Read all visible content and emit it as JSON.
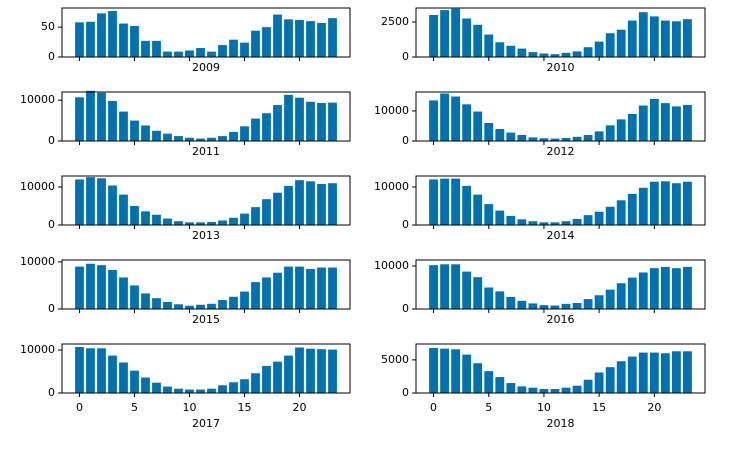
{
  "chart_data": [
    {
      "type": "bar",
      "xlabel": "2009",
      "color": "#0072b2",
      "xlim": [
        -1.59,
        24.59
      ],
      "ylim": [
        0,
        82
      ],
      "yticks": [
        0,
        50
      ],
      "xticks": [
        0,
        5,
        10,
        15,
        20
      ],
      "xtick_labels": false,
      "x": [
        0,
        1,
        2,
        3,
        4,
        5,
        6,
        7,
        8,
        9,
        10,
        11,
        12,
        13,
        14,
        15,
        16,
        17,
        18,
        19,
        20,
        21,
        22,
        23
      ],
      "values": [
        58,
        59,
        73,
        77,
        56,
        52,
        27,
        27,
        9,
        9,
        11,
        15,
        9,
        20,
        29,
        24,
        44,
        50,
        71,
        63,
        62,
        60,
        57,
        65
      ]
    },
    {
      "type": "bar",
      "xlabel": "2010",
      "color": "#0072b2",
      "xlim": [
        -1.59,
        24.59
      ],
      "ylim": [
        0,
        3500
      ],
      "yticks": [
        0,
        2500
      ],
      "xticks": [
        0,
        5,
        10,
        15,
        20
      ],
      "xtick_labels": false,
      "x": [
        0,
        1,
        2,
        3,
        4,
        5,
        6,
        7,
        8,
        9,
        10,
        11,
        12,
        13,
        14,
        15,
        16,
        17,
        18,
        19,
        20,
        21,
        22,
        23
      ],
      "values": [
        3000,
        3350,
        3450,
        2750,
        2300,
        1600,
        1050,
        800,
        600,
        350,
        250,
        200,
        300,
        400,
        700,
        1100,
        1700,
        1950,
        2600,
        3200,
        2900,
        2600,
        2550,
        2700
      ]
    },
    {
      "type": "bar",
      "xlabel": "2011",
      "color": "#0072b2",
      "xlim": [
        -1.59,
        24.59
      ],
      "ylim": [
        0,
        12000
      ],
      "yticks": [
        0,
        10000
      ],
      "xticks": [
        0,
        5,
        10,
        15,
        20
      ],
      "xtick_labels": false,
      "x": [
        0,
        1,
        2,
        3,
        4,
        5,
        6,
        7,
        8,
        9,
        10,
        11,
        12,
        13,
        14,
        15,
        16,
        17,
        18,
        19,
        20,
        21,
        22,
        23
      ],
      "values": [
        10700,
        12300,
        11800,
        9800,
        7200,
        5000,
        3800,
        2500,
        1800,
        1200,
        800,
        600,
        800,
        1200,
        2200,
        3600,
        5500,
        6800,
        8800,
        11300,
        10600,
        9600,
        9300,
        9400
      ]
    },
    {
      "type": "bar",
      "xlabel": "2012",
      "color": "#0072b2",
      "xlim": [
        -1.59,
        24.59
      ],
      "ylim": [
        0,
        16300
      ],
      "yticks": [
        0,
        10000
      ],
      "xticks": [
        0,
        5,
        10,
        15,
        20
      ],
      "xtick_labels": false,
      "x": [
        0,
        1,
        2,
        3,
        4,
        5,
        6,
        7,
        8,
        9,
        10,
        11,
        12,
        13,
        14,
        15,
        16,
        17,
        18,
        19,
        20,
        21,
        22,
        23
      ],
      "values": [
        13500,
        15800,
        14800,
        12200,
        9800,
        6000,
        4000,
        2800,
        2000,
        1200,
        900,
        800,
        1000,
        1400,
        2000,
        3200,
        5200,
        7200,
        9000,
        11800,
        14000,
        12600,
        11500,
        12000
      ]
    },
    {
      "type": "bar",
      "xlabel": "2013",
      "color": "#0072b2",
      "xlim": [
        -1.59,
        24.59
      ],
      "ylim": [
        0,
        12900
      ],
      "yticks": [
        0,
        10000
      ],
      "xticks": [
        0,
        5,
        10,
        15,
        20
      ],
      "xtick_labels": false,
      "x": [
        0,
        1,
        2,
        3,
        4,
        5,
        6,
        7,
        8,
        9,
        10,
        11,
        12,
        13,
        14,
        15,
        16,
        17,
        18,
        19,
        20,
        21,
        22,
        23
      ],
      "values": [
        12000,
        12600,
        12300,
        10400,
        8000,
        5000,
        3600,
        2700,
        1700,
        1000,
        700,
        700,
        800,
        1200,
        1900,
        3000,
        4700,
        6800,
        8500,
        10300,
        11800,
        11500,
        10800,
        11000
      ]
    },
    {
      "type": "bar",
      "xlabel": "2014",
      "color": "#0072b2",
      "xlim": [
        -1.59,
        24.59
      ],
      "ylim": [
        0,
        12900
      ],
      "yticks": [
        0,
        10000
      ],
      "xticks": [
        0,
        5,
        10,
        15,
        20
      ],
      "xtick_labels": false,
      "x": [
        0,
        1,
        2,
        3,
        4,
        5,
        6,
        7,
        8,
        9,
        10,
        11,
        12,
        13,
        14,
        15,
        16,
        17,
        18,
        19,
        20,
        21,
        22,
        23
      ],
      "values": [
        12000,
        12200,
        12200,
        10300,
        8000,
        5500,
        3800,
        2400,
        1500,
        1000,
        700,
        700,
        1000,
        1600,
        2600,
        3500,
        4800,
        6500,
        8200,
        9800,
        11400,
        11500,
        11000,
        11400
      ]
    },
    {
      "type": "bar",
      "xlabel": "2015",
      "color": "#0072b2",
      "xlim": [
        -1.59,
        24.59
      ],
      "ylim": [
        0,
        10400
      ],
      "yticks": [
        0,
        10000
      ],
      "xticks": [
        0,
        5,
        10,
        15,
        20
      ],
      "xtick_labels": false,
      "x": [
        0,
        1,
        2,
        3,
        4,
        5,
        6,
        7,
        8,
        9,
        10,
        11,
        12,
        13,
        14,
        15,
        16,
        17,
        18,
        19,
        20,
        21,
        22,
        23
      ],
      "values": [
        9000,
        9600,
        9300,
        8300,
        6700,
        5000,
        3300,
        2300,
        1500,
        1000,
        700,
        900,
        1100,
        1900,
        2600,
        3700,
        5700,
        6700,
        7700,
        9000,
        9000,
        8500,
        8800,
        8800
      ]
    },
    {
      "type": "bar",
      "xlabel": "2016",
      "color": "#0072b2",
      "xlim": [
        -1.59,
        24.59
      ],
      "ylim": [
        0,
        11400
      ],
      "yticks": [
        0,
        10000
      ],
      "xticks": [
        0,
        5,
        10,
        15,
        20
      ],
      "xtick_labels": false,
      "x": [
        0,
        1,
        2,
        3,
        4,
        5,
        6,
        7,
        8,
        9,
        10,
        11,
        12,
        13,
        14,
        15,
        16,
        17,
        18,
        19,
        20,
        21,
        22,
        23
      ],
      "values": [
        10200,
        10400,
        10400,
        8700,
        7400,
        5000,
        4100,
        2800,
        1900,
        1300,
        900,
        800,
        1200,
        1400,
        2300,
        3200,
        4500,
        6000,
        7300,
        8500,
        9500,
        9800,
        9500,
        9800
      ]
    },
    {
      "type": "bar",
      "xlabel": "2017",
      "color": "#0072b2",
      "xlim": [
        -1.59,
        24.59
      ],
      "ylim": [
        0,
        11400
      ],
      "yticks": [
        0,
        10000
      ],
      "xticks": [
        0,
        5,
        10,
        15,
        20
      ],
      "xtick_labels": true,
      "x": [
        0,
        1,
        2,
        3,
        4,
        5,
        6,
        7,
        8,
        9,
        10,
        11,
        12,
        13,
        14,
        15,
        16,
        17,
        18,
        19,
        20,
        21,
        22,
        23
      ],
      "values": [
        10700,
        10400,
        10400,
        8700,
        7100,
        5200,
        3600,
        2400,
        1500,
        1000,
        800,
        800,
        1000,
        1800,
        2500,
        3200,
        4600,
        6300,
        7300,
        8700,
        10600,
        10300,
        10200,
        10100
      ]
    },
    {
      "type": "bar",
      "xlabel": "2018",
      "color": "#0072b2",
      "xlim": [
        -1.59,
        24.59
      ],
      "ylim": [
        0,
        7400
      ],
      "yticks": [
        0,
        5000
      ],
      "xticks": [
        0,
        5,
        10,
        15,
        20
      ],
      "xtick_labels": true,
      "x": [
        0,
        1,
        2,
        3,
        4,
        5,
        6,
        7,
        8,
        9,
        10,
        11,
        12,
        13,
        14,
        15,
        16,
        17,
        18,
        19,
        20,
        21,
        22,
        23
      ],
      "values": [
        6800,
        6700,
        6600,
        5800,
        4500,
        3300,
        2400,
        1500,
        1000,
        800,
        600,
        600,
        800,
        1100,
        2000,
        3100,
        3900,
        4800,
        5500,
        6100,
        6100,
        6000,
        6300,
        6300
      ]
    }
  ]
}
